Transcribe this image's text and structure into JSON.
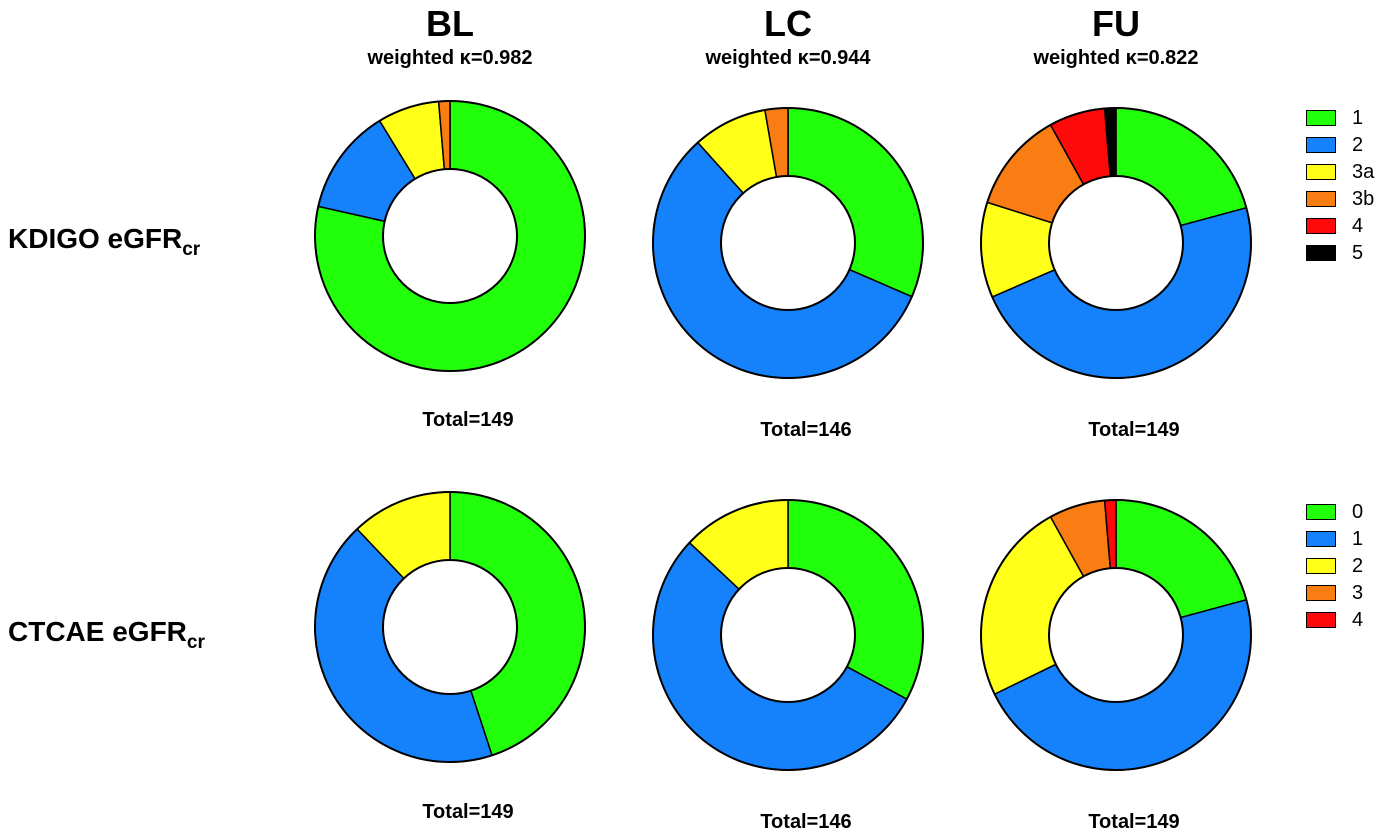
{
  "columns": [
    {
      "title": "BL",
      "kappa": "weighted κ=0.982"
    },
    {
      "title": "LC",
      "kappa": "weighted κ=0.944"
    },
    {
      "title": "FU",
      "kappa": "weighted κ=0.822"
    }
  ],
  "rows": [
    {
      "label_main": "KDIGO eGFR",
      "label_sub": "cr"
    },
    {
      "label_main": "CTCAE eGFR",
      "label_sub": "cr"
    }
  ],
  "legends": [
    {
      "items": [
        {
          "label": "1",
          "color": "#22ff0a"
        },
        {
          "label": "2",
          "color": "#1581fb"
        },
        {
          "label": "3a",
          "color": "#ffff18"
        },
        {
          "label": "3b",
          "color": "#fa7d14"
        },
        {
          "label": "4",
          "color": "#fe0a0a"
        },
        {
          "label": "5",
          "color": "#000000"
        }
      ]
    },
    {
      "items": [
        {
          "label": "0",
          "color": "#22ff0a"
        },
        {
          "label": "1",
          "color": "#1581fb"
        },
        {
          "label": "2",
          "color": "#ffff18"
        },
        {
          "label": "3",
          "color": "#fa7d14"
        },
        {
          "label": "4",
          "color": "#fe0a0a"
        }
      ]
    }
  ],
  "chart_data": [
    {
      "type": "pie",
      "panel": "KDIGO BL",
      "total": "Total=149",
      "categories": [
        "1",
        "2",
        "3a",
        "3b",
        "4",
        "5"
      ],
      "values": [
        117,
        19,
        11,
        2,
        0,
        0
      ]
    },
    {
      "type": "pie",
      "panel": "KDIGO LC",
      "total": "Total=146",
      "categories": [
        "1",
        "2",
        "3a",
        "3b",
        "4",
        "5"
      ],
      "values": [
        46,
        83,
        13,
        4,
        0,
        0
      ]
    },
    {
      "type": "pie",
      "panel": "KDIGO FU",
      "total": "Total=149",
      "categories": [
        "1",
        "2",
        "3a",
        "3b",
        "4",
        "5"
      ],
      "values": [
        31,
        71,
        17,
        18,
        10,
        2
      ]
    },
    {
      "type": "pie",
      "panel": "CTCAE BL",
      "total": "Total=149",
      "categories": [
        "0",
        "1",
        "2",
        "3",
        "4"
      ],
      "values": [
        67,
        64,
        18,
        0,
        0
      ]
    },
    {
      "type": "pie",
      "panel": "CTCAE LC",
      "total": "Total=146",
      "categories": [
        "0",
        "1",
        "2",
        "3",
        "4"
      ],
      "values": [
        48,
        79,
        19,
        0,
        0
      ]
    },
    {
      "type": "pie",
      "panel": "CTCAE FU",
      "total": "Total=149",
      "categories": [
        "0",
        "1",
        "2",
        "3",
        "4"
      ],
      "values": [
        31,
        70,
        36,
        10,
        2
      ]
    }
  ]
}
